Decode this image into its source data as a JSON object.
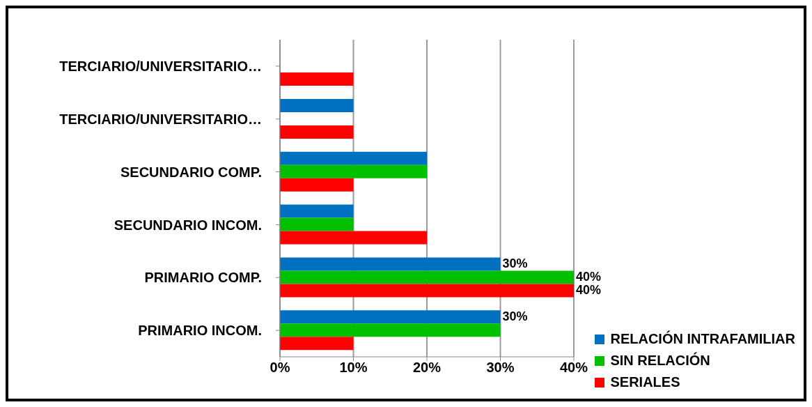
{
  "chart_data": {
    "type": "bar",
    "orientation": "horizontal",
    "categories": [
      "TERCIARIO/UNIVERSITARIO…",
      "TERCIARIO/UNIVERSITARIO…",
      "SECUNDARIO COMP.",
      "SECUNDARIO INCOM.",
      "PRIMARIO COMP.",
      "PRIMARIO INCOM."
    ],
    "series": [
      {
        "name": "RELACIÓN INTRAFAMILIAR",
        "color": "#0070c0",
        "values": [
          0,
          10,
          20,
          10,
          30,
          30
        ],
        "value_labels": [
          null,
          null,
          null,
          null,
          "30%",
          "30%"
        ]
      },
      {
        "name": "SIN RELACIÓN",
        "color": "#00c000",
        "values": [
          0,
          0,
          20,
          10,
          40,
          30
        ],
        "value_labels": [
          null,
          null,
          null,
          null,
          "40%",
          null
        ]
      },
      {
        "name": "SERIALES",
        "color": "#ff0000",
        "values": [
          10,
          10,
          10,
          20,
          40,
          10
        ],
        "value_labels": [
          null,
          null,
          null,
          null,
          "40%",
          null
        ]
      }
    ],
    "xlim": [
      0,
      40
    ],
    "xticks": [
      {
        "value": 0,
        "label": "0%"
      },
      {
        "value": 10,
        "label": "10%"
      },
      {
        "value": 20,
        "label": "20%"
      },
      {
        "value": 30,
        "label": "30%"
      },
      {
        "value": 40,
        "label": "40%"
      }
    ],
    "grid": "x",
    "legend": "bottom right"
  }
}
